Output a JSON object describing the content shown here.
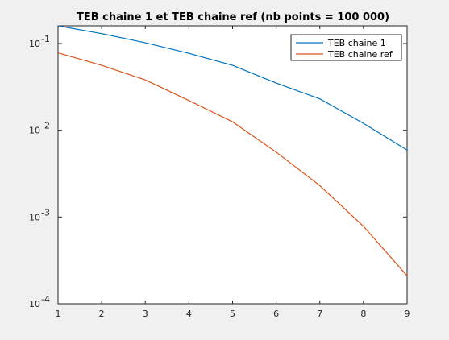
{
  "chart_data": {
    "type": "line",
    "title": "TEB chaine 1 et TEB chaine ref (nb points = 100 000)",
    "xlabel": "",
    "ylabel": "",
    "x": [
      1,
      2,
      3,
      4,
      5,
      6,
      7,
      8,
      9
    ],
    "xlim": [
      1,
      9
    ],
    "ylim": [
      0.0001,
      0.16
    ],
    "yscale": "log",
    "x_ticks": [
      "1",
      "2",
      "3",
      "4",
      "5",
      "6",
      "7",
      "8",
      "9"
    ],
    "y_ticks": [
      {
        "value": 0.0001,
        "base": "10",
        "exp": "-4"
      },
      {
        "value": 0.001,
        "base": "10",
        "exp": "-3"
      },
      {
        "value": 0.01,
        "base": "10",
        "exp": "-2"
      },
      {
        "value": 0.1,
        "base": "10",
        "exp": "-1"
      }
    ],
    "grid": false,
    "legend_position": "top-right",
    "series": [
      {
        "name": "TEB chaine 1",
        "color": "#0072bd",
        "values": [
          0.16,
          0.13,
          0.102,
          0.077,
          0.056,
          0.035,
          0.023,
          0.012,
          0.0059
        ]
      },
      {
        "name": "TEB chaine ref",
        "color": "#d95319",
        "values": [
          0.078,
          0.056,
          0.038,
          0.022,
          0.0125,
          0.0056,
          0.0023,
          0.00078,
          0.00021
        ]
      }
    ]
  }
}
